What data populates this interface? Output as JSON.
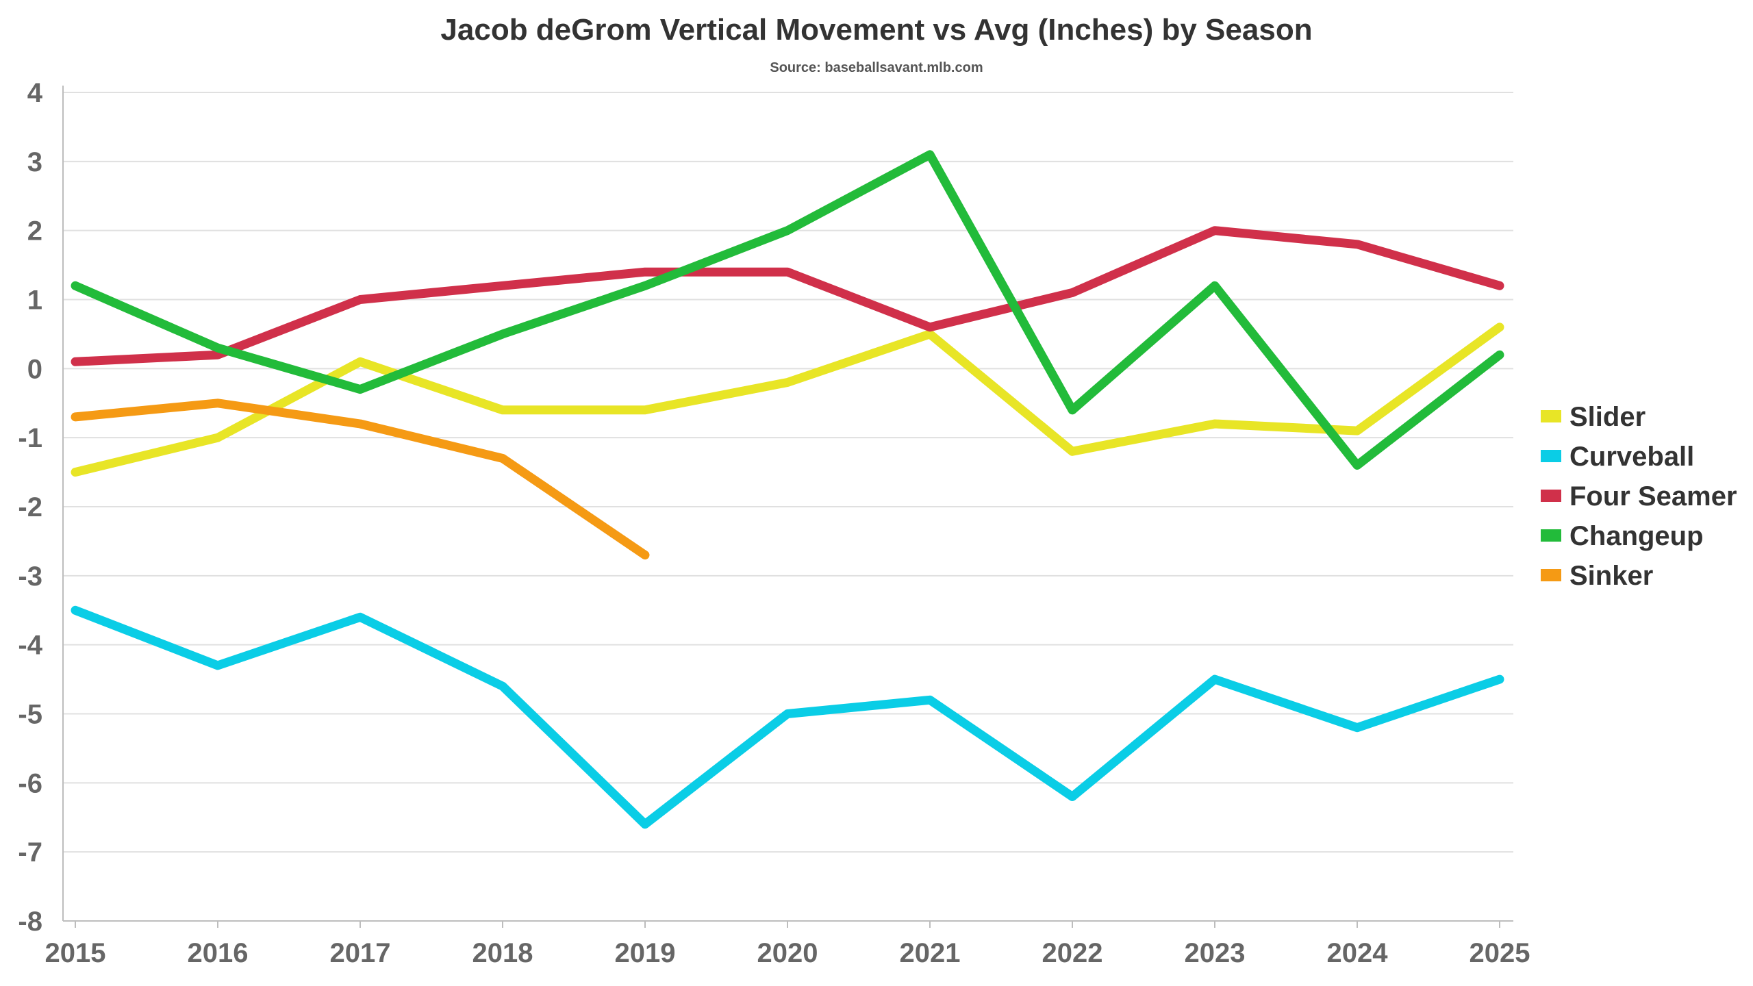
{
  "chart_data": {
    "type": "line",
    "title": "Jacob deGrom Vertical Movement vs Avg (Inches) by Season",
    "subtitle": "Source: baseballsavant.mlb.com",
    "x": [
      "2015",
      "2016",
      "2017",
      "2018",
      "2019",
      "2020",
      "2021",
      "2022",
      "2023",
      "2024",
      "2025"
    ],
    "ylim": [
      -8,
      4
    ],
    "yticks": [
      "4",
      "3",
      "2",
      "1",
      "0",
      "-1",
      "-2",
      "-3",
      "-4",
      "-5",
      "-6",
      "-7",
      "-8"
    ],
    "grid": true,
    "legend_position": "right",
    "series": [
      {
        "name": "Slider",
        "color": "#e8e526",
        "values": [
          -1.5,
          -1.0,
          0.1,
          -0.6,
          -0.6,
          -0.2,
          0.5,
          -1.2,
          -0.8,
          -0.9,
          0.6
        ]
      },
      {
        "name": "Curveball",
        "color": "#0acde6",
        "values": [
          -3.5,
          -4.3,
          -3.6,
          -4.6,
          -6.6,
          -5.0,
          -4.8,
          -6.2,
          -4.5,
          -5.2,
          -4.5
        ]
      },
      {
        "name": "Four Seamer",
        "color": "#d0304a",
        "values": [
          0.1,
          0.2,
          1.0,
          1.2,
          1.4,
          1.4,
          0.6,
          1.1,
          2.0,
          1.8,
          1.2
        ]
      },
      {
        "name": "Changeup",
        "color": "#22bb3a",
        "values": [
          1.2,
          0.3,
          -0.3,
          0.5,
          1.2,
          2.0,
          3.1,
          -0.6,
          1.2,
          -1.4,
          0.2
        ]
      },
      {
        "name": "Sinker",
        "color": "#f59a14",
        "values": [
          -0.7,
          -0.5,
          -0.8,
          -1.3,
          -2.7,
          null,
          null,
          null,
          null,
          null,
          null
        ]
      }
    ]
  }
}
